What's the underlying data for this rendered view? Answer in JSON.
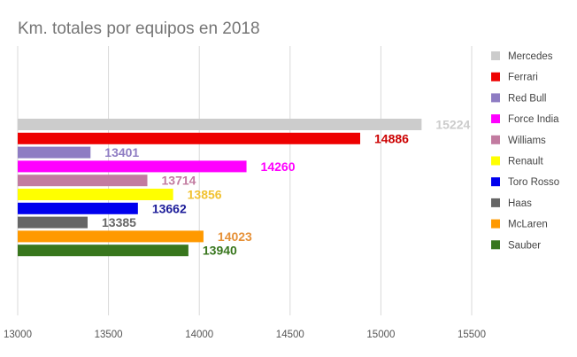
{
  "chart_data": {
    "type": "bar",
    "orientation": "horizontal",
    "title": "Km. totales por equipos en 2018",
    "xlabel": "",
    "ylabel": "",
    "xlim": [
      13000,
      15500
    ],
    "x_ticks": [
      "13000",
      "13500",
      "14000",
      "14500",
      "15000",
      "15500"
    ],
    "grid": true,
    "legend_position": "right",
    "series": [
      {
        "name": "Mercedes",
        "value": 15224,
        "color": "#cccccc"
      },
      {
        "name": "Ferrari",
        "value": 14886,
        "color": "#ee0000"
      },
      {
        "name": "Red Bull",
        "value": 13401,
        "color": "#8e7cc3"
      },
      {
        "name": "Force India",
        "value": 14260,
        "color": "#ff00ff"
      },
      {
        "name": "Williams",
        "value": 13714,
        "color": "#c27ba0"
      },
      {
        "name": "Renault",
        "value": 13856,
        "color": "#ffff00"
      },
      {
        "name": "Toro Rosso",
        "value": 13662,
        "color": "#0000ee"
      },
      {
        "name": "Haas",
        "value": 13385,
        "color": "#666666"
      },
      {
        "name": "McLaren",
        "value": 14023,
        "color": "#ff9900"
      },
      {
        "name": "Sauber",
        "value": 13940,
        "color": "#38761d"
      }
    ],
    "label_colors": {
      "Mercedes": "#cccccc",
      "Ferrari": "#cc0000",
      "Red Bull": "#8e7cc3",
      "Force India": "#ff00ff",
      "Williams": "#c27ba0",
      "Renault": "#f1c232",
      "Toro Rosso": "#1c1c99",
      "Haas": "#666666",
      "McLaren": "#e69138",
      "Sauber": "#38761d"
    }
  }
}
